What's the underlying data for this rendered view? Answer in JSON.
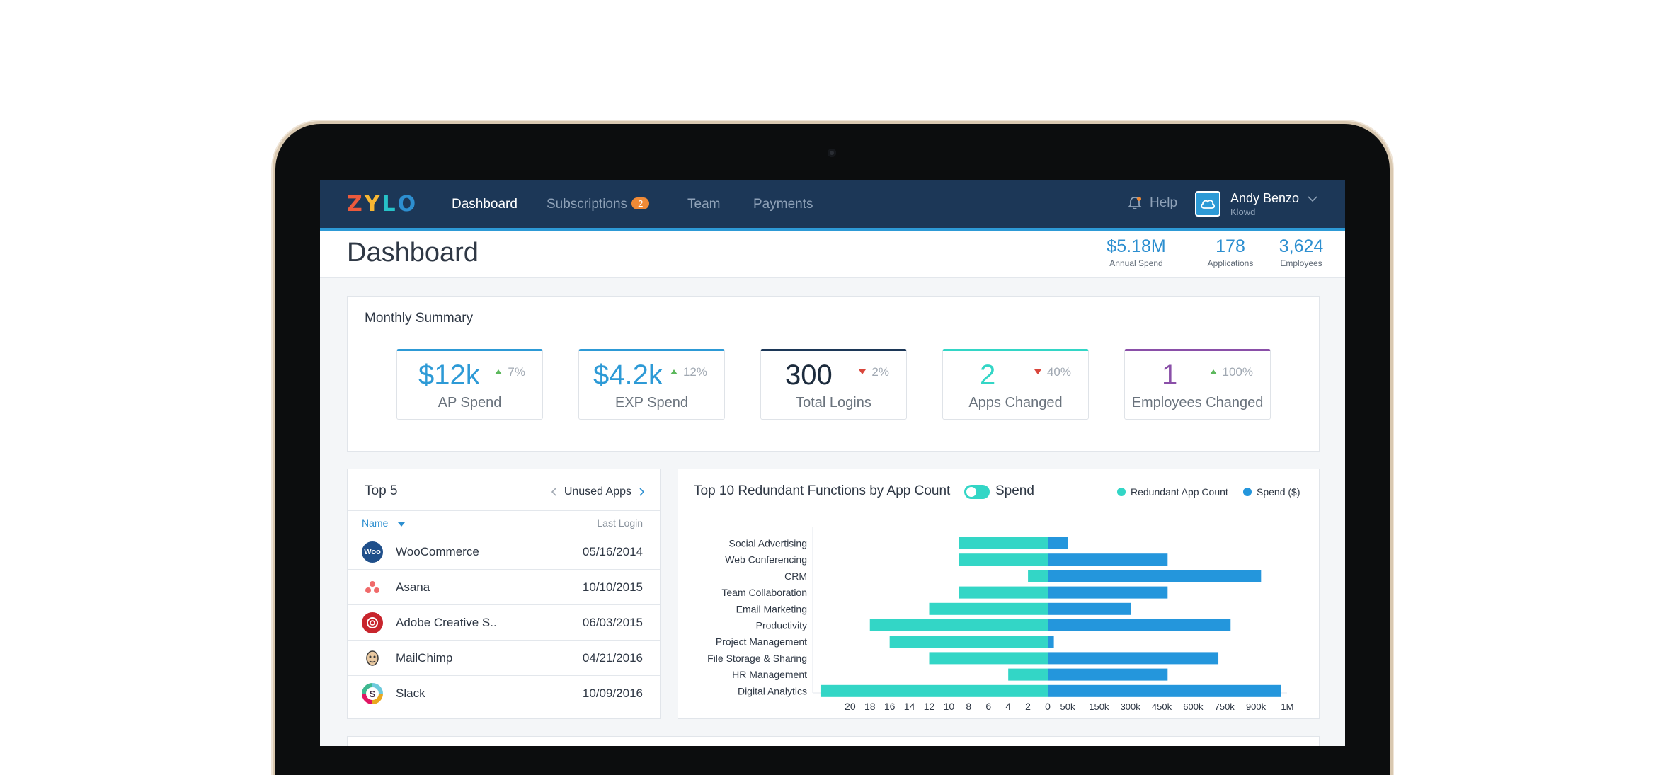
{
  "colors": {
    "nav_bg": "#1c3757",
    "accent_blue": "#2d8fd0",
    "teal": "#33d6c6",
    "spend_blue": "#2496dc",
    "badge_orange": "#f08a36"
  },
  "nav": {
    "logo_letters": [
      "Z",
      "Y",
      "L",
      "O"
    ],
    "logo_colors": [
      "#ec5a3c",
      "#f7b733",
      "#27c2c8",
      "#2d8fd0"
    ],
    "items": [
      {
        "label": "Dashboard",
        "active": true
      },
      {
        "label": "Subscriptions",
        "badge": "2"
      },
      {
        "label": "Team"
      },
      {
        "label": "Payments"
      }
    ],
    "help_label": "Help",
    "help_icon": "bell-icon",
    "user": {
      "name": "Andy Benzo",
      "org": "Klowd",
      "avatar_icon": "cloud-icon"
    }
  },
  "header": {
    "title": "Dashboard",
    "stats": [
      {
        "value": "$5.18M",
        "label": "Annual Spend"
      },
      {
        "value": "178",
        "label": "Applications"
      },
      {
        "value": "3,624",
        "label": "Employees"
      }
    ]
  },
  "monthly_summary": {
    "title": "Monthly Summary",
    "kpis": [
      {
        "value": "$12k",
        "trend": "7%",
        "direction": "up",
        "label": "AP Spend",
        "color": "#2d9ad6"
      },
      {
        "value": "$4.2k",
        "trend": "12%",
        "direction": "up",
        "label": "EXP Spend",
        "color": "#2d9ad6"
      },
      {
        "value": "300",
        "trend": "2%",
        "direction": "down",
        "label": "Total Logins",
        "color": "#1c3757"
      },
      {
        "value": "2",
        "trend": "40%",
        "direction": "down",
        "label": "Apps Changed",
        "color": "#33d6c6"
      },
      {
        "value": "1",
        "trend": "100%",
        "direction": "up",
        "label": "Employees Changed",
        "color": "#8a4fa8"
      }
    ]
  },
  "top5": {
    "title": "Top 5",
    "selector": "Unused Apps",
    "col_name": "Name",
    "col_login": "Last Login",
    "rows": [
      {
        "name": "WooCommerce",
        "date": "05/16/2014",
        "icon": "woocommerce-icon",
        "icon_text": "Woo",
        "icon_color": "#1f4f8a"
      },
      {
        "name": "Asana",
        "date": "10/10/2015",
        "icon": "asana-icon",
        "icon_text": "",
        "icon_color": "#ffffff"
      },
      {
        "name": "Adobe Creative S..",
        "date": "06/03/2015",
        "icon": "adobe-icon",
        "icon_text": "",
        "icon_color": "#c8252d"
      },
      {
        "name": "MailChimp",
        "date": "04/21/2016",
        "icon": "mailchimp-icon",
        "icon_text": "",
        "icon_color": "#ffffff"
      },
      {
        "name": "Slack",
        "date": "10/09/2016",
        "icon": "slack-icon",
        "icon_text": "S",
        "icon_color": "#6ecadc"
      }
    ]
  },
  "redundant": {
    "title": "Top 10 Redundant Functions by App Count",
    "toggle_label": "Spend",
    "legend": [
      {
        "label": "Redundant App Count",
        "color": "#33d6c6"
      },
      {
        "label": "Spend ($)",
        "color": "#2496dc"
      }
    ]
  },
  "chart_data": {
    "type": "bar",
    "orientation": "horizontal-diverging",
    "categories": [
      "Social Advertising",
      "Web Conferencing",
      "CRM",
      "Team Collaboration",
      "Email Marketing",
      "Productivity",
      "Project Management",
      "File Storage & Sharing",
      "HR Management",
      "Digital Analytics"
    ],
    "series": [
      {
        "name": "Redundant App Count",
        "values": [
          9,
          9,
          2,
          9,
          12,
          18,
          16,
          12,
          4,
          23
        ]
      },
      {
        "name": "Spend ($)",
        "values": [
          100000,
          590000,
          1050000,
          590000,
          410000,
          900000,
          30000,
          840000,
          590000,
          1150000
        ]
      }
    ],
    "left_ticks": [
      "20",
      "18",
      "16",
      "14",
      "12",
      "10",
      "8",
      "6",
      "4",
      "2",
      "0"
    ],
    "right_ticks": [
      "50k",
      "150k",
      "300k",
      "450k",
      "600k",
      "750k",
      "900k",
      "1M"
    ],
    "left_max": 24,
    "right_max": 1150000
  }
}
